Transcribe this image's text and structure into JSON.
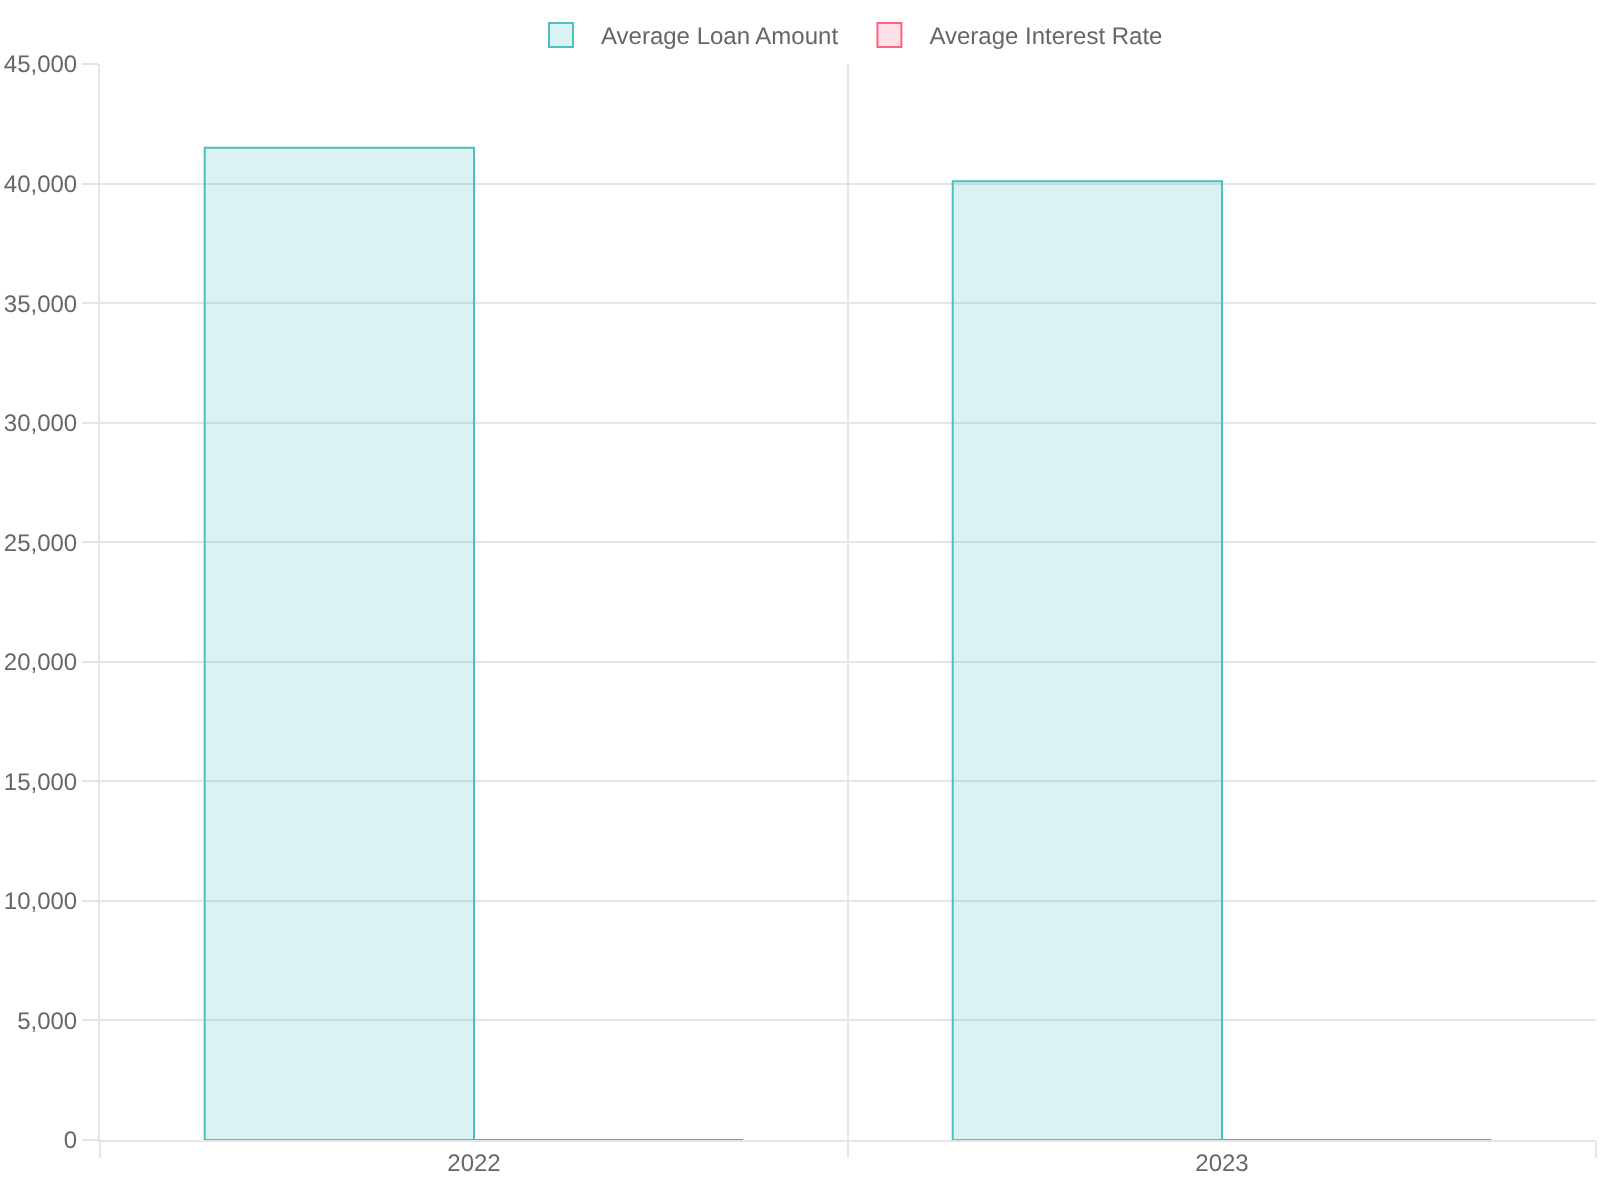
{
  "chart_data": {
    "type": "bar",
    "categories": [
      "2022",
      "2023"
    ],
    "series": [
      {
        "name": "Average Loan Amount",
        "color": "#4bc0c0",
        "values": [
          41500,
          40100
        ]
      },
      {
        "name": "Average Interest Rate",
        "color": "#ff6384",
        "values": [
          0,
          0
        ]
      }
    ],
    "ylim": [
      0,
      45000
    ],
    "yticks": [
      {
        "value": 0,
        "label": "0"
      },
      {
        "value": 5000,
        "label": "5,000"
      },
      {
        "value": 10000,
        "label": "10,000"
      },
      {
        "value": 15000,
        "label": "15,000"
      },
      {
        "value": 20000,
        "label": "20,000"
      },
      {
        "value": 25000,
        "label": "25,000"
      },
      {
        "value": 30000,
        "label": "30,000"
      },
      {
        "value": 35000,
        "label": "35,000"
      },
      {
        "value": 40000,
        "label": "40,000"
      },
      {
        "value": 45000,
        "label": "45,000"
      }
    ],
    "grid": true,
    "legend": "top"
  }
}
